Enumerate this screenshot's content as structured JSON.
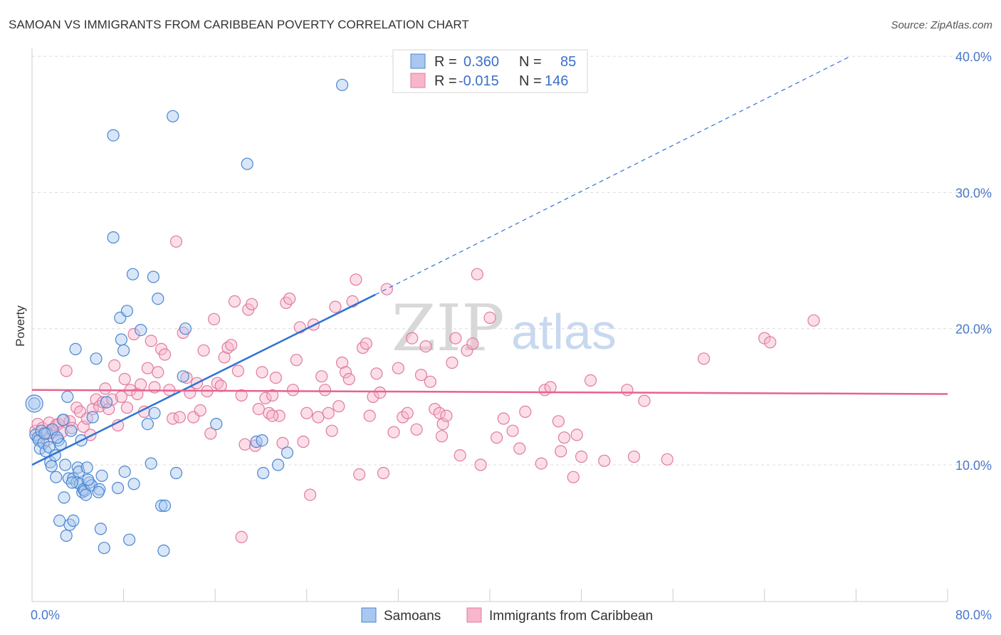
{
  "title": "SAMOAN VS IMMIGRANTS FROM CARIBBEAN POVERTY CORRELATION CHART",
  "source": "Source: ZipAtlas.com",
  "watermark": {
    "zip": "ZIP",
    "atlas": "atlas"
  },
  "chart_data": {
    "type": "scatter",
    "ylabel": "Poverty",
    "xlim": [
      0,
      80
    ],
    "ylim": [
      0,
      42
    ],
    "x_tick_labels": [
      "0.0%",
      "80.0%"
    ],
    "y_ticks": [
      10,
      20,
      30,
      40
    ],
    "y_tick_labels": [
      "10.0%",
      "20.0%",
      "30.0%",
      "40.0%"
    ],
    "grid": true,
    "legend": {
      "placement": "top-center",
      "rows": [
        {
          "r_label": "R =",
          "r_value": "0.360",
          "n_label": "N =",
          "n_value": "85"
        },
        {
          "r_label": "R =",
          "r_value": "-0.015",
          "n_label": "N =",
          "n_value": "146"
        }
      ]
    },
    "bottom_legend": [
      "Samoans",
      "Immigrants from Caribbean"
    ],
    "colors": {
      "samoans_fill": "#a9c7ef",
      "samoans_stroke": "#4a86d0",
      "samoans_line": "#2e72d2",
      "carib_fill": "#f7b6cb",
      "carib_stroke": "#e07aa0",
      "carib_line": "#e8628f"
    },
    "series": [
      {
        "name": "Samoans",
        "trend": {
          "x0": 0,
          "y0": 10.0,
          "x1": 30,
          "y1": 22.5,
          "dash_to_x": 71.5,
          "dash_to_y": 40.0
        },
        "points": [
          [
            0.2,
            14.5
          ],
          [
            0.3,
            12.2
          ],
          [
            0.5,
            12.0
          ],
          [
            0.6,
            11.8
          ],
          [
            0.7,
            11.2
          ],
          [
            0.8,
            12.5
          ],
          [
            1.0,
            11.6
          ],
          [
            1.2,
            11.0
          ],
          [
            1.3,
            12.3
          ],
          [
            1.5,
            11.3
          ],
          [
            1.6,
            10.2
          ],
          [
            1.7,
            9.9
          ],
          [
            1.8,
            12.6
          ],
          [
            2.0,
            10.7
          ],
          [
            2.1,
            9.1
          ],
          [
            2.3,
            11.8
          ],
          [
            2.4,
            5.9
          ],
          [
            2.5,
            11.5
          ],
          [
            2.7,
            13.3
          ],
          [
            2.8,
            7.6
          ],
          [
            2.9,
            10.0
          ],
          [
            3.0,
            4.8
          ],
          [
            3.1,
            15.0
          ],
          [
            3.2,
            9.0
          ],
          [
            3.3,
            5.6
          ],
          [
            3.6,
            9.0
          ],
          [
            3.6,
            5.9
          ],
          [
            3.8,
            18.5
          ],
          [
            3.9,
            8.7
          ],
          [
            4.0,
            9.8
          ],
          [
            4.1,
            9.5
          ],
          [
            4.2,
            8.6
          ],
          [
            4.3,
            11.8
          ],
          [
            4.4,
            8.0
          ],
          [
            4.5,
            8.2
          ],
          [
            4.6,
            8.1
          ],
          [
            4.7,
            7.8
          ],
          [
            4.8,
            9.8
          ],
          [
            5.0,
            8.7
          ],
          [
            5.2,
            8.5
          ],
          [
            5.3,
            13.5
          ],
          [
            5.6,
            17.8
          ],
          [
            5.9,
            8.2
          ],
          [
            6.0,
            5.3
          ],
          [
            6.3,
            3.9
          ],
          [
            6.5,
            14.6
          ],
          [
            7.1,
            34.2
          ],
          [
            7.1,
            26.7
          ],
          [
            7.5,
            8.3
          ],
          [
            7.7,
            20.8
          ],
          [
            7.8,
            19.2
          ],
          [
            8.0,
            18.4
          ],
          [
            8.1,
            9.5
          ],
          [
            8.3,
            21.3
          ],
          [
            8.5,
            4.5
          ],
          [
            8.8,
            24.0
          ],
          [
            8.9,
            8.6
          ],
          [
            9.5,
            19.9
          ],
          [
            10.1,
            13.0
          ],
          [
            10.4,
            10.1
          ],
          [
            10.6,
            23.8
          ],
          [
            10.7,
            13.8
          ],
          [
            11.0,
            22.2
          ],
          [
            11.3,
            7.0
          ],
          [
            11.5,
            3.7
          ],
          [
            11.6,
            7.0
          ],
          [
            12.3,
            35.6
          ],
          [
            12.6,
            9.4
          ],
          [
            13.2,
            16.5
          ],
          [
            13.4,
            20.0
          ],
          [
            16.1,
            13.0
          ],
          [
            18.8,
            32.1
          ],
          [
            19.6,
            11.7
          ],
          [
            20.1,
            11.8
          ],
          [
            20.2,
            9.4
          ],
          [
            21.5,
            10.0
          ],
          [
            22.3,
            10.9
          ],
          [
            27.1,
            37.9
          ],
          [
            3.5,
            8.7
          ],
          [
            5.8,
            8.0
          ],
          [
            1.1,
            12.3
          ],
          [
            2.2,
            12.0
          ],
          [
            3.4,
            12.5
          ],
          [
            4.9,
            8.9
          ],
          [
            6.1,
            9.2
          ]
        ]
      },
      {
        "name": "Immigrants from Caribbean",
        "trend": {
          "x0": 0,
          "y0": 15.5,
          "x1": 80,
          "y1": 15.2
        },
        "points": [
          [
            0.3,
            12.5
          ],
          [
            0.5,
            13.0
          ],
          [
            0.7,
            12.0
          ],
          [
            0.9,
            12.7
          ],
          [
            1.1,
            12.3
          ],
          [
            1.3,
            11.8
          ],
          [
            1.5,
            13.1
          ],
          [
            1.7,
            12.6
          ],
          [
            1.9,
            12.4
          ],
          [
            2.1,
            12.9
          ],
          [
            2.3,
            13.0
          ],
          [
            2.6,
            12.4
          ],
          [
            2.8,
            13.3
          ],
          [
            3.0,
            16.9
          ],
          [
            3.3,
            13.2
          ],
          [
            3.5,
            12.7
          ],
          [
            3.9,
            14.2
          ],
          [
            4.2,
            13.9
          ],
          [
            4.5,
            12.8
          ],
          [
            4.8,
            13.4
          ],
          [
            5.1,
            12.2
          ],
          [
            5.3,
            14.1
          ],
          [
            5.6,
            14.8
          ],
          [
            5.9,
            14.3
          ],
          [
            6.2,
            14.6
          ],
          [
            6.4,
            15.6
          ],
          [
            6.7,
            14.1
          ],
          [
            7.0,
            14.8
          ],
          [
            7.2,
            17.3
          ],
          [
            7.5,
            12.9
          ],
          [
            7.8,
            15.0
          ],
          [
            8.1,
            16.3
          ],
          [
            8.3,
            14.2
          ],
          [
            8.6,
            15.5
          ],
          [
            8.9,
            19.6
          ],
          [
            9.2,
            15.2
          ],
          [
            9.5,
            15.9
          ],
          [
            9.8,
            13.9
          ],
          [
            10.1,
            17.1
          ],
          [
            10.4,
            19.1
          ],
          [
            10.7,
            15.7
          ],
          [
            11.0,
            16.8
          ],
          [
            11.3,
            18.5
          ],
          [
            11.6,
            18.1
          ],
          [
            12.0,
            15.5
          ],
          [
            12.3,
            13.4
          ],
          [
            12.6,
            26.4
          ],
          [
            12.9,
            13.5
          ],
          [
            13.2,
            19.7
          ],
          [
            13.5,
            16.4
          ],
          [
            13.8,
            15.3
          ],
          [
            14.1,
            13.5
          ],
          [
            14.4,
            16.0
          ],
          [
            14.7,
            14.0
          ],
          [
            15.0,
            18.4
          ],
          [
            15.3,
            15.4
          ],
          [
            15.6,
            12.3
          ],
          [
            15.9,
            20.7
          ],
          [
            16.2,
            16.0
          ],
          [
            16.5,
            15.8
          ],
          [
            16.8,
            17.9
          ],
          [
            17.1,
            18.6
          ],
          [
            17.4,
            18.8
          ],
          [
            17.7,
            22.0
          ],
          [
            18.0,
            16.9
          ],
          [
            18.3,
            15.1
          ],
          [
            18.6,
            11.5
          ],
          [
            18.9,
            21.4
          ],
          [
            19.2,
            21.8
          ],
          [
            19.5,
            11.4
          ],
          [
            19.8,
            14.1
          ],
          [
            20.1,
            16.8
          ],
          [
            20.4,
            14.9
          ],
          [
            20.7,
            13.8
          ],
          [
            21.0,
            15.1
          ],
          [
            21.3,
            16.4
          ],
          [
            21.6,
            13.6
          ],
          [
            21.9,
            11.6
          ],
          [
            22.2,
            21.9
          ],
          [
            22.5,
            22.2
          ],
          [
            22.8,
            15.5
          ],
          [
            23.1,
            17.7
          ],
          [
            23.4,
            20.1
          ],
          [
            23.7,
            11.7
          ],
          [
            24.0,
            13.8
          ],
          [
            24.3,
            7.8
          ],
          [
            24.6,
            20.3
          ],
          [
            25.0,
            13.5
          ],
          [
            25.3,
            16.5
          ],
          [
            25.6,
            15.5
          ],
          [
            25.9,
            13.8
          ],
          [
            26.2,
            12.5
          ],
          [
            26.5,
            21.6
          ],
          [
            26.8,
            14.3
          ],
          [
            27.1,
            17.5
          ],
          [
            27.4,
            16.8
          ],
          [
            27.7,
            16.3
          ],
          [
            28.0,
            22.0
          ],
          [
            28.3,
            23.6
          ],
          [
            28.6,
            9.3
          ],
          [
            28.9,
            18.6
          ],
          [
            29.2,
            18.9
          ],
          [
            29.5,
            13.6
          ],
          [
            29.8,
            15.0
          ],
          [
            30.1,
            16.7
          ],
          [
            30.4,
            15.3
          ],
          [
            30.7,
            9.4
          ],
          [
            31.0,
            22.9
          ],
          [
            31.6,
            12.4
          ],
          [
            32.0,
            17.1
          ],
          [
            32.4,
            13.5
          ],
          [
            32.8,
            13.8
          ],
          [
            33.2,
            19.3
          ],
          [
            33.6,
            12.6
          ],
          [
            34.0,
            16.6
          ],
          [
            34.4,
            18.7
          ],
          [
            34.8,
            16.1
          ],
          [
            35.2,
            14.1
          ],
          [
            35.6,
            13.8
          ],
          [
            35.9,
            13.0
          ],
          [
            36.2,
            13.6
          ],
          [
            36.7,
            17.5
          ],
          [
            37.0,
            19.3
          ],
          [
            37.4,
            10.7
          ],
          [
            38.0,
            18.4
          ],
          [
            38.5,
            18.9
          ],
          [
            38.9,
            24.0
          ],
          [
            39.2,
            10.0
          ],
          [
            40.0,
            20.8
          ],
          [
            40.6,
            12.0
          ],
          [
            41.2,
            13.4
          ],
          [
            42.0,
            12.5
          ],
          [
            42.6,
            11.2
          ],
          [
            43.1,
            13.9
          ],
          [
            44.5,
            10.1
          ],
          [
            44.8,
            15.5
          ],
          [
            45.3,
            15.7
          ],
          [
            46.0,
            13.2
          ],
          [
            46.5,
            12.0
          ],
          [
            47.6,
            12.2
          ],
          [
            48.8,
            16.2
          ],
          [
            50.0,
            10.3
          ],
          [
            52.0,
            15.5
          ],
          [
            52.6,
            10.6
          ],
          [
            53.5,
            14.7
          ],
          [
            55.5,
            10.4
          ],
          [
            58.7,
            17.8
          ],
          [
            64.0,
            19.3
          ],
          [
            64.5,
            19.0
          ],
          [
            68.3,
            20.6
          ],
          [
            46.2,
            11.0
          ],
          [
            48.0,
            10.6
          ],
          [
            47.3,
            9.1
          ],
          [
            18.3,
            4.7
          ],
          [
            35.8,
            12.1
          ],
          [
            21.0,
            13.6
          ]
        ]
      }
    ]
  }
}
